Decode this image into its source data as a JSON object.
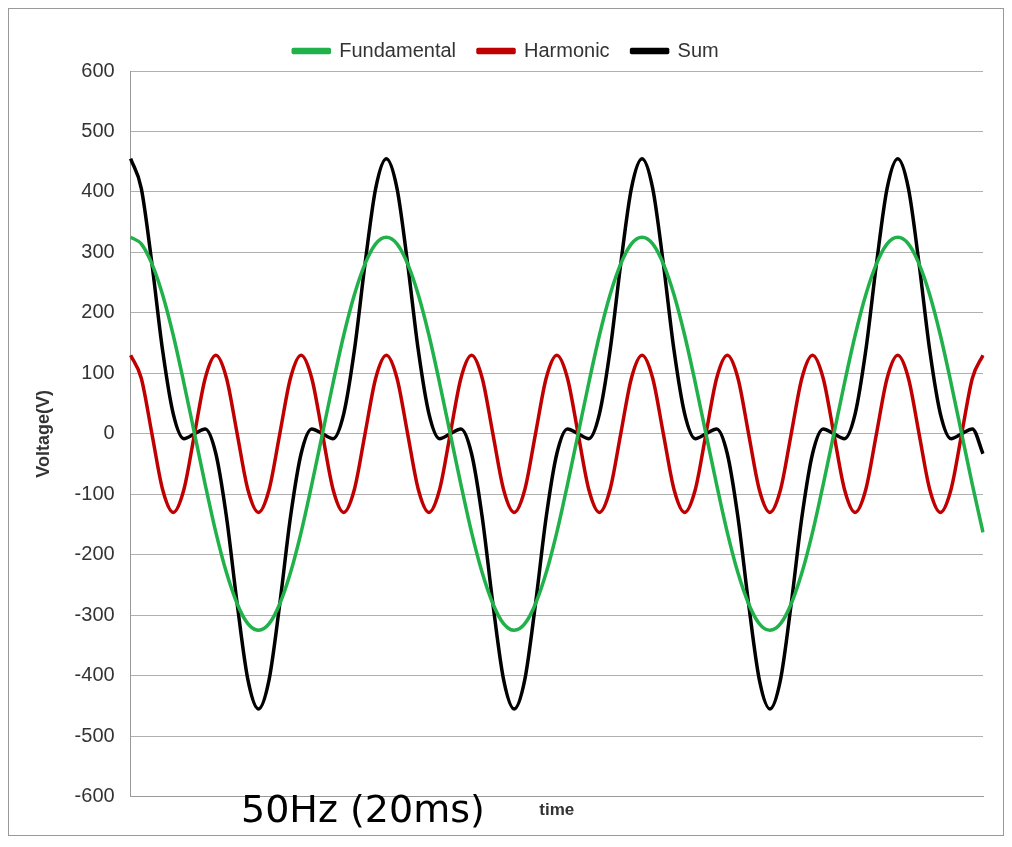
{
  "chart_data": {
    "type": "line",
    "xlabel": "time",
    "ylabel": "Voltage(V)",
    "annotations": [
      "50Hz (20ms)"
    ],
    "categories": [
      null,
      null,
      null,
      null,
      null,
      null,
      null,
      null,
      null,
      null,
      null,
      null,
      null,
      null,
      null,
      null,
      null,
      null,
      null,
      null,
      null,
      null,
      null,
      null,
      null,
      null,
      null,
      null,
      null,
      null,
      null,
      null,
      null,
      null,
      null,
      null,
      null,
      null,
      null,
      null,
      null,
      null,
      null,
      null,
      null,
      null,
      null,
      null,
      null,
      null,
      null,
      null,
      null,
      null,
      null,
      null,
      null,
      null,
      null,
      null,
      null,
      null,
      null,
      null,
      null,
      null,
      null,
      null,
      null,
      null,
      null,
      null,
      null,
      null,
      null,
      null,
      null,
      null,
      null,
      null,
      null
    ],
    "series": [
      {
        "name": "Fundamental",
        "color": "#21b14b",
        "values": [
          325,
          314,
          281,
          230,
          163,
          84,
          0,
          -84,
          -163,
          -230,
          -281,
          -314,
          -325,
          -314,
          -281,
          -230,
          -163,
          -84,
          0,
          84,
          163,
          230,
          281,
          314,
          325,
          314,
          281,
          230,
          163,
          84,
          0,
          -84,
          -163,
          -230,
          -281,
          -314,
          -325,
          -314,
          -281,
          -230,
          -163,
          -84,
          0,
          84,
          163,
          230,
          281,
          314,
          325,
          314,
          281,
          230,
          163,
          84,
          0,
          -84,
          -163,
          -230,
          -281,
          -314,
          -325,
          -314,
          -281,
          -230,
          -163,
          -84,
          0,
          84,
          163,
          230,
          281,
          314,
          325,
          314,
          281,
          230,
          163,
          84,
          0,
          -84,
          -163
        ]
      },
      {
        "name": "Harmonic",
        "color": "#c00000",
        "values": [
          130,
          92,
          0,
          -92,
          -130,
          -92,
          0,
          92,
          130,
          92,
          0,
          -92,
          -130,
          -92,
          0,
          92,
          130,
          92,
          0,
          -92,
          -130,
          -92,
          0,
          92,
          130,
          92,
          0,
          -92,
          -130,
          -92,
          0,
          92,
          130,
          92,
          0,
          -92,
          -130,
          -92,
          0,
          92,
          130,
          92,
          0,
          -92,
          -130,
          -92,
          0,
          92,
          130,
          92,
          0,
          -92,
          -130,
          -92,
          0,
          92,
          130,
          92,
          0,
          -92,
          -130,
          -92,
          0,
          92,
          130,
          92,
          0,
          -92,
          -130,
          -92,
          0,
          92,
          130,
          92,
          0,
          -92,
          -130,
          -92,
          0,
          92,
          130
        ]
      },
      {
        "name": "Sum",
        "color": "#000000",
        "values": [
          455,
          406,
          281,
          138,
          33,
          -8,
          0,
          8,
          -33,
          -138,
          -281,
          -406,
          -455,
          -406,
          -281,
          -138,
          -33,
          8,
          0,
          -8,
          33,
          138,
          281,
          406,
          455,
          406,
          281,
          138,
          33,
          -8,
          0,
          8,
          -33,
          -138,
          -281,
          -406,
          -455,
          -406,
          -281,
          -138,
          -33,
          8,
          0,
          -8,
          33,
          138,
          281,
          406,
          455,
          406,
          281,
          138,
          33,
          -8,
          0,
          8,
          -33,
          -138,
          -281,
          -406,
          -455,
          -406,
          -281,
          -138,
          -33,
          8,
          0,
          -8,
          33,
          138,
          281,
          406,
          455,
          406,
          281,
          138,
          33,
          -8,
          0,
          8,
          -33
        ]
      }
    ],
    "ylim": [
      -600,
      600
    ],
    "yticks": [
      -600,
      -500,
      -400,
      -300,
      -200,
      -100,
      0,
      100,
      200,
      300,
      400,
      500,
      600
    ],
    "grid": "y",
    "legend": "top",
    "tick_labels": "y",
    "marker": "none",
    "line_style": "solid"
  }
}
